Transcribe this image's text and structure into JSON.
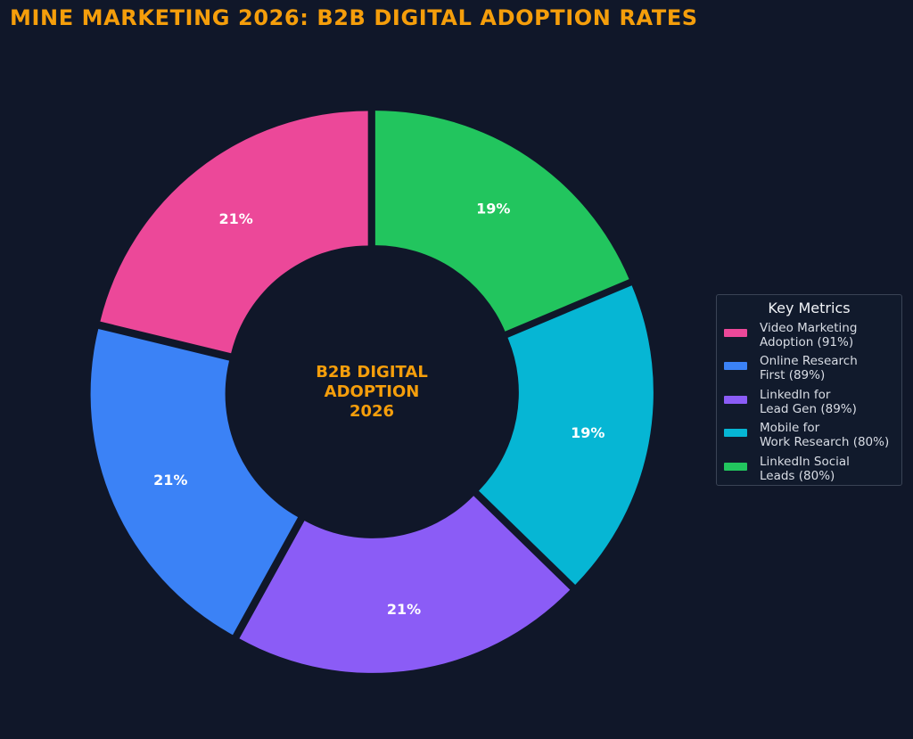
{
  "title": "MINE MARKETING 2026: B2B DIGITAL ADOPTION RATES",
  "colors": {
    "background": "#101729",
    "title": "#f59e0b",
    "center_text": "#f59e0b",
    "slice_label": "#ffffff"
  },
  "center_label": [
    "B2B DIGITAL",
    "ADOPTION",
    "2026"
  ],
  "legend": {
    "title": "Key Metrics",
    "placement": "right",
    "entries": [
      {
        "label": "Video Marketing\nAdoption (91%)",
        "color": "#ec4899"
      },
      {
        "label": "Online Research\nFirst (89%)",
        "color": "#3b82f6"
      },
      {
        "label": "LinkedIn for\nLead Gen (89%)",
        "color": "#8b5cf6"
      },
      {
        "label": "Mobile for\nWork Research (80%)",
        "color": "#06b6d4"
      },
      {
        "label": "LinkedIn Social\nLeads (80%)",
        "color": "#22c55e"
      }
    ]
  },
  "chart_data": {
    "type": "pie",
    "variant": "donut",
    "title": "MINE MARKETING 2026: B2B DIGITAL ADOPTION RATES",
    "start": "top",
    "direction": "counterclockwise",
    "categories": [
      "Video Marketing Adoption (91%)",
      "Online Research First (89%)",
      "LinkedIn for Lead Gen (89%)",
      "Mobile for Work Research (80%)",
      "LinkedIn Social Leads (80%)"
    ],
    "values": [
      91,
      89,
      89,
      80,
      80
    ],
    "slice_labels": [
      "21%",
      "21%",
      "21%",
      "19%",
      "19%"
    ],
    "colors": [
      "#ec4899",
      "#3b82f6",
      "#8b5cf6",
      "#06b6d4",
      "#22c55e"
    ]
  }
}
